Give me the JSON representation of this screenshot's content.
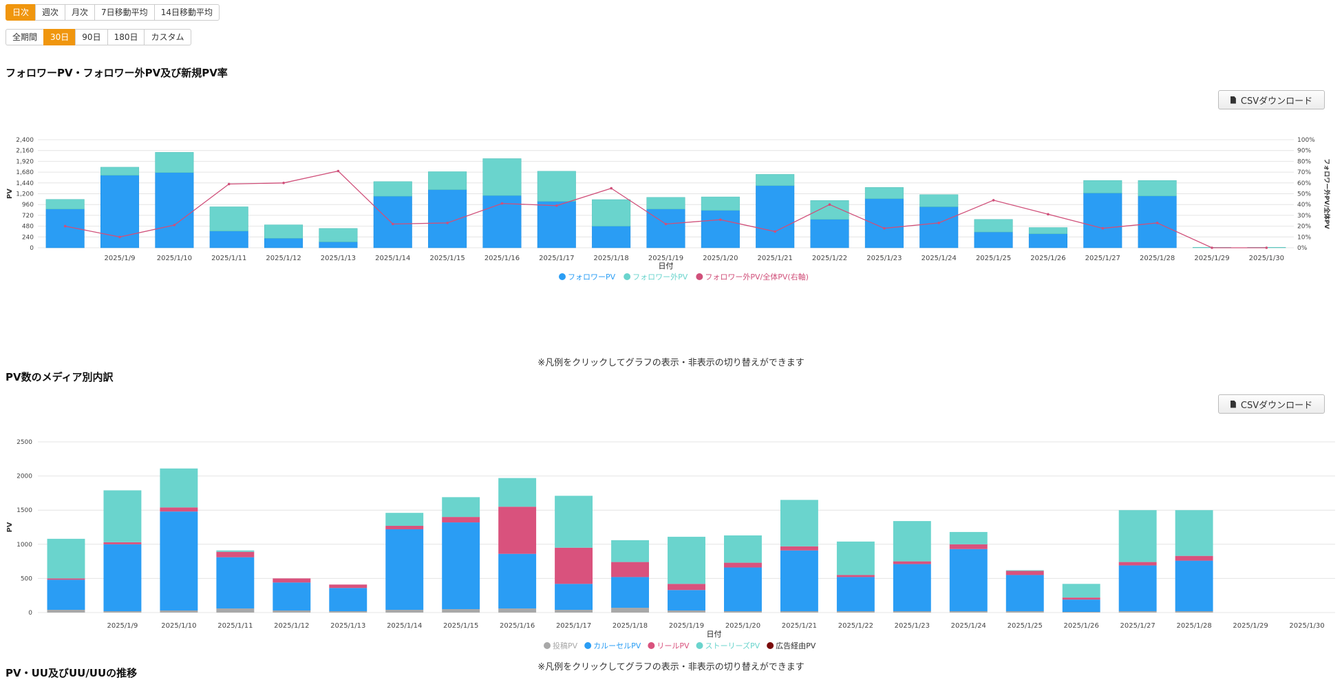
{
  "granularity": {
    "items": [
      {
        "label": "日次",
        "active": true
      },
      {
        "label": "週次",
        "active": false
      },
      {
        "label": "月次",
        "active": false
      },
      {
        "label": "7日移動平均",
        "active": false
      },
      {
        "label": "14日移動平均",
        "active": false
      }
    ]
  },
  "period": {
    "items": [
      {
        "label": "全期間",
        "active": false
      },
      {
        "label": "30日",
        "active": true
      },
      {
        "label": "90日",
        "active": false
      },
      {
        "label": "180日",
        "active": false
      },
      {
        "label": "カスタム",
        "active": false
      }
    ]
  },
  "section1": {
    "title": "フォロワーPV・フォロワー外PV及び新規PV率",
    "csv_label": "CSVダウンロード",
    "note": "※凡例をクリックしてグラフの表示・非表示の切り替えができます"
  },
  "section2": {
    "title": "PV数のメディア別内訳",
    "csv_label": "CSVダウンロード",
    "note": "※凡例をクリックしてグラフの表示・非表示の切り替えができます"
  },
  "section3": {
    "title": "PV・UU及びUU/UUの推移"
  },
  "colors": {
    "accent": "#f0960e",
    "follower": "#2a9df4",
    "nonfollower": "#6ad4cd",
    "ratio": "#d0507a",
    "post": "#a8a8a8",
    "carousel": "#2a9df4",
    "reel": "#d9527d",
    "stories": "#6ad4cd",
    "ad": "#7a0a0a"
  },
  "chart_data": [
    {
      "type": "bar",
      "stacked": true,
      "title": "フォロワーPV・フォロワー外PV及び新規PV率",
      "xlabel": "日付",
      "ylabel": "PV",
      "y2label": "フォロワー外PV/全体PV",
      "ylim": [
        0,
        2400
      ],
      "yticks": [
        0,
        240,
        480,
        720,
        960,
        1200,
        1440,
        1680,
        1920,
        2160,
        2400
      ],
      "y2lim": [
        0,
        100
      ],
      "y2ticks": [
        "0%",
        "10%",
        "20%",
        "30%",
        "40%",
        "50%",
        "60%",
        "70%",
        "80%",
        "90%",
        "100%"
      ],
      "categories": [
        "",
        "2025/1/9",
        "2025/1/10",
        "2025/1/11",
        "2025/1/12",
        "2025/1/13",
        "2025/1/14",
        "2025/1/15",
        "2025/1/16",
        "2025/1/17",
        "2025/1/18",
        "2025/1/19",
        "2025/1/20",
        "2025/1/21",
        "2025/1/22",
        "2025/1/23",
        "2025/1/24",
        "2025/1/25",
        "2025/1/26",
        "2025/1/27",
        "2025/1/28",
        "2025/1/29",
        "2025/1/30"
      ],
      "series": [
        {
          "name": "フォロワーPV",
          "values": [
            860,
            1610,
            1670,
            370,
            210,
            130,
            1145,
            1290,
            1160,
            1030,
            480,
            860,
            830,
            1380,
            630,
            1090,
            910,
            350,
            310,
            1215,
            1150,
            0,
            0
          ]
        },
        {
          "name": "フォロワー外PV",
          "values": [
            215,
            180,
            450,
            540,
            300,
            300,
            325,
            400,
            820,
            670,
            590,
            260,
            300,
            250,
            420,
            250,
            270,
            280,
            140,
            280,
            345,
            10,
            10
          ]
        },
        {
          "name": "フォロワー外PV/全体PV(右軸)",
          "axis": "right",
          "values": [
            20,
            10,
            21,
            59,
            60,
            71,
            22,
            23,
            41,
            39,
            55,
            22,
            26,
            15,
            40,
            18,
            23,
            44,
            31,
            18,
            23,
            0,
            0
          ]
        }
      ]
    },
    {
      "type": "bar",
      "stacked": true,
      "title": "PV数のメディア別内訳",
      "xlabel": "日付",
      "ylabel": "PV",
      "ylim": [
        0,
        2500
      ],
      "yticks": [
        0,
        500,
        1000,
        1500,
        2000,
        2500
      ],
      "categories": [
        "",
        "2025/1/9",
        "2025/1/10",
        "2025/1/11",
        "2025/1/12",
        "2025/1/13",
        "2025/1/14",
        "2025/1/15",
        "2025/1/16",
        "2025/1/17",
        "2025/1/18",
        "2025/1/19",
        "2025/1/20",
        "2025/1/21",
        "2025/1/22",
        "2025/1/23",
        "2025/1/24",
        "2025/1/25",
        "2025/1/26",
        "2025/1/27",
        "2025/1/28",
        "2025/1/29",
        "2025/1/30"
      ],
      "series": [
        {
          "name": "投稿PV",
          "values": [
            40,
            20,
            30,
            60,
            30,
            20,
            40,
            50,
            60,
            40,
            70,
            30,
            20,
            20,
            20,
            20,
            20,
            20,
            10,
            20,
            20,
            0,
            0
          ]
        },
        {
          "name": "カルーセルPV",
          "values": [
            440,
            980,
            1450,
            750,
            410,
            340,
            1180,
            1270,
            800,
            380,
            450,
            300,
            640,
            890,
            500,
            690,
            910,
            530,
            180,
            670,
            740,
            0,
            0
          ]
        },
        {
          "name": "リールPV",
          "values": [
            20,
            30,
            60,
            80,
            60,
            50,
            50,
            80,
            690,
            530,
            220,
            90,
            70,
            60,
            30,
            40,
            70,
            60,
            30,
            50,
            70,
            0,
            0
          ]
        },
        {
          "name": "ストーリーズPV",
          "values": [
            580,
            760,
            570,
            20,
            0,
            0,
            190,
            290,
            420,
            760,
            320,
            690,
            400,
            680,
            490,
            590,
            180,
            10,
            200,
            760,
            670,
            0,
            0
          ]
        },
        {
          "name": "広告経由PV",
          "values": [
            0,
            0,
            0,
            0,
            0,
            0,
            0,
            0,
            0,
            0,
            0,
            0,
            0,
            0,
            0,
            0,
            0,
            0,
            0,
            0,
            0,
            0,
            0
          ]
        }
      ]
    }
  ]
}
